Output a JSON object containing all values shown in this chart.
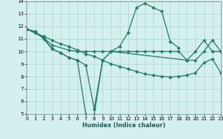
{
  "xlabel": "Humidex (Indice chaleur)",
  "background_color": "#d4f0ee",
  "grid_color": "#aed8d5",
  "line_color": "#2a7d6e",
  "xlim": [
    0,
    23
  ],
  "ylim": [
    5,
    14
  ],
  "xticks": [
    0,
    1,
    2,
    3,
    4,
    5,
    6,
    7,
    8,
    9,
    10,
    11,
    12,
    13,
    14,
    15,
    16,
    17,
    18,
    19,
    20,
    21,
    22,
    23
  ],
  "yticks": [
    5,
    6,
    7,
    8,
    9,
    10,
    11,
    12,
    13,
    14
  ],
  "line1_x": [
    0,
    1,
    2,
    3,
    4,
    5,
    6,
    7,
    8,
    9,
    10,
    11,
    12,
    13,
    14,
    15,
    16,
    17,
    18
  ],
  "line1_y": [
    11.8,
    11.6,
    11.0,
    10.2,
    9.9,
    9.5,
    9.3,
    4.95,
    4.95,
    9.3,
    10.0,
    10.4,
    11.5,
    13.5,
    13.85,
    13.5,
    13.2,
    10.8,
    10.3
  ],
  "line2_x": [
    0,
    2,
    3,
    5,
    6,
    7,
    8,
    9,
    10,
    11,
    12,
    13,
    14,
    15,
    16,
    17,
    18,
    19,
    20,
    21,
    22,
    23
  ],
  "line2_y": [
    11.8,
    11.1,
    10.5,
    10.1,
    10.0,
    10.0,
    10.0,
    10.0,
    10.0,
    10.0,
    10.0,
    10.0,
    10.0,
    10.0,
    10.0,
    10.0,
    10.0,
    9.3,
    9.3,
    10.0,
    10.9,
    10.0
  ],
  "line3_x": [
    0,
    1,
    2,
    3,
    4,
    5,
    6,
    7,
    8,
    9,
    10,
    11,
    12,
    13,
    14,
    15,
    16,
    17,
    18,
    19,
    20,
    21,
    22,
    23
  ],
  "line3_y": [
    11.8,
    11.5,
    11.2,
    10.9,
    10.6,
    10.4,
    10.1,
    9.8,
    9.6,
    9.3,
    9.0,
    8.8,
    8.6,
    8.4,
    8.2,
    8.1,
    8.0,
    7.95,
    8.0,
    8.1,
    8.3,
    9.1,
    9.4,
    8.3
  ],
  "line4_x": [
    0,
    1,
    2,
    3,
    4,
    5,
    6,
    7,
    8,
    9,
    10,
    19,
    20,
    21,
    22,
    23
  ],
  "line4_y": [
    11.8,
    11.5,
    11.1,
    10.2,
    9.9,
    9.5,
    9.3,
    8.9,
    5.4,
    9.3,
    10.0,
    9.3,
    10.0,
    10.9,
    10.0,
    10.0
  ],
  "marker_size": 2.5,
  "line_width": 1.0,
  "xlabel_fontsize": 6.0,
  "tick_fontsize": 5.0
}
